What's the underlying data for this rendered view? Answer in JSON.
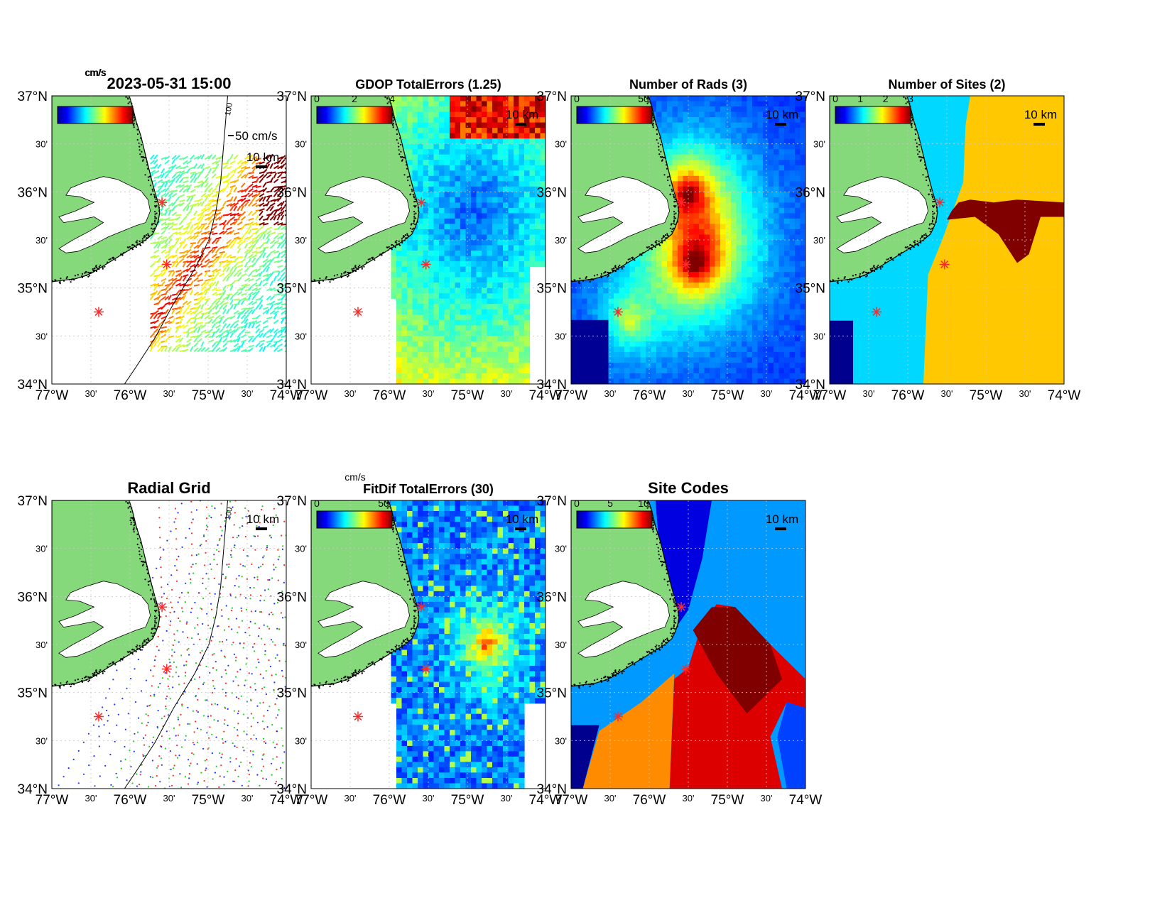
{
  "figure": {
    "timestamp": "2023-05-31 15:00",
    "units_label": "cm/s",
    "vector_scale_label": "50 cm/s",
    "scale_bar_label": "10 km",
    "colors": {
      "land": "#86d97a",
      "site_marker": "#ff2a2a",
      "grid": "#c8c8c8"
    },
    "latitude_labels": [
      "37°N",
      "30'",
      "36°N",
      "30'",
      "35°N",
      "30'",
      "34°N"
    ],
    "longitude_labels": [
      "77°W",
      "30'",
      "76°W",
      "30'",
      "75°W",
      "30'",
      "74°W"
    ],
    "extent": {
      "lon": [
        -77,
        -74
      ],
      "lat": [
        34,
        37
      ]
    }
  },
  "panels": [
    {
      "id": "velocity",
      "title": "2023-05-31 15:00",
      "colorbar_ticks": [],
      "units": "cm/s",
      "contour_label": "100",
      "field": "vectors"
    },
    {
      "id": "gdop",
      "title": "GDOP TotalErrors (1.25)",
      "colorbar_ticks": [
        "0",
        "2",
        "4"
      ],
      "contour_label": "1.25",
      "field": "gdop"
    },
    {
      "id": "nrads",
      "title": "Number of Rads (3)",
      "colorbar_ticks": [
        "0",
        "50"
      ],
      "contour_label": "3",
      "field": "nrads"
    },
    {
      "id": "nsites",
      "title": "Number of Sites (2)",
      "colorbar_ticks": [
        "0",
        "1",
        "2",
        "3"
      ],
      "contour_label": "2",
      "field": "nsites"
    },
    {
      "id": "radial",
      "title": "Radial Grid",
      "colorbar_ticks": [],
      "contour_label": "100",
      "field": "radial"
    },
    {
      "id": "fitdif",
      "title": "FitDif TotalErrors (30)",
      "colorbar_ticks": [
        "0",
        "50"
      ],
      "units": "cm/s",
      "contour_label": "30",
      "field": "fitdif"
    },
    {
      "id": "sitecodes",
      "title": "Site Codes",
      "colorbar_ticks": [
        "0",
        "5",
        "10"
      ],
      "contour_label": "",
      "field": "sitecodes"
    }
  ]
}
